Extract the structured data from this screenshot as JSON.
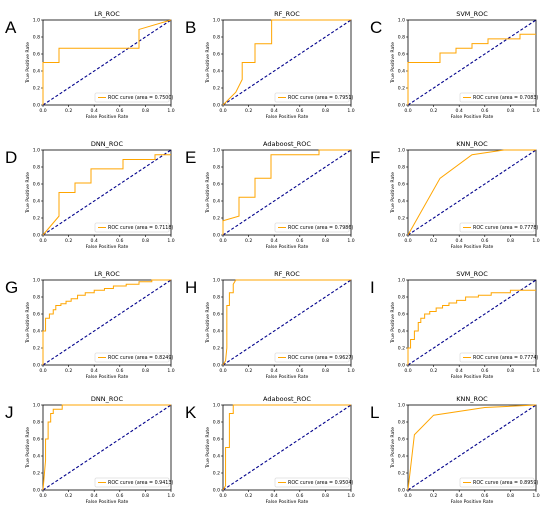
{
  "chart_data": [
    {
      "type": "line",
      "panel_label": "A",
      "title": "LR_ROC",
      "xlabel": "False Positive Rate",
      "ylabel": "True Positive Rate",
      "xlim": [
        0,
        1
      ],
      "ylim": [
        0,
        1
      ],
      "xticks": [
        "0.0",
        "0.2",
        "0.4",
        "0.6",
        "0.8",
        "1.0"
      ],
      "yticks": [
        "0.0",
        "0.2",
        "0.4",
        "0.6",
        "0.8",
        "1.0"
      ],
      "legend": "ROC curve (area = 0.7500)",
      "legend_position": "lower right",
      "color": "#ffa500",
      "x": [
        0,
        0,
        0,
        0.125,
        0.125,
        0.375,
        0.375,
        0.75,
        0.75,
        1.0
      ],
      "y": [
        0,
        0.5,
        0.5,
        0.5,
        0.667,
        0.667,
        0.667,
        0.667,
        0.889,
        1.0
      ]
    },
    {
      "type": "line",
      "panel_label": "B",
      "title": "RF_ROC",
      "xlabel": "False Positive Rate",
      "ylabel": "True Positive Rate",
      "xlim": [
        0,
        1
      ],
      "ylim": [
        0,
        1
      ],
      "xticks": [
        "0.0",
        "0.2",
        "0.4",
        "0.6",
        "0.8",
        "1.0"
      ],
      "yticks": [
        "0.0",
        "0.2",
        "0.4",
        "0.6",
        "0.8",
        "1.0"
      ],
      "legend": "ROC curve (area = 0.7951)",
      "legend_position": "lower right",
      "color": "#ffa500",
      "x": [
        0,
        0.1,
        0.15,
        0.15,
        0.25,
        0.25,
        0.38,
        0.38,
        1.0
      ],
      "y": [
        0,
        0.15,
        0.3,
        0.5,
        0.5,
        0.72,
        0.72,
        1.0,
        1.0
      ]
    },
    {
      "type": "line",
      "panel_label": "C",
      "title": "SVM_ROC",
      "xlabel": "False Positive Rate",
      "ylabel": "True Positive Rate",
      "xlim": [
        0,
        1
      ],
      "ylim": [
        0,
        1
      ],
      "xticks": [
        "0.0",
        "0.2",
        "0.4",
        "0.6",
        "0.8",
        "1.0"
      ],
      "yticks": [
        "0.0",
        "0.2",
        "0.4",
        "0.6",
        "0.8",
        "1.0"
      ],
      "legend": "ROC curve (area = 0.7083)",
      "legend_position": "lower right",
      "color": "#ffa500",
      "x": [
        0,
        0,
        0.25,
        0.25,
        0.375,
        0.375,
        0.5,
        0.5,
        0.625,
        0.625,
        0.875,
        0.875,
        1.0
      ],
      "y": [
        0,
        0.5,
        0.5,
        0.611,
        0.611,
        0.667,
        0.667,
        0.722,
        0.722,
        0.778,
        0.778,
        0.833,
        0.833
      ]
    },
    {
      "type": "line",
      "panel_label": "D",
      "title": "DNN_ROC",
      "xlabel": "False Positive Rate",
      "ylabel": "True Positive Rate",
      "xlim": [
        0,
        1
      ],
      "ylim": [
        0,
        1
      ],
      "xticks": [
        "0.0",
        "0.2",
        "0.4",
        "0.6",
        "0.8",
        "1.0"
      ],
      "yticks": [
        "0.0",
        "0.2",
        "0.4",
        "0.6",
        "0.8",
        "1.0"
      ],
      "legend": "ROC curve (area = 0.7118)",
      "legend_position": "lower right",
      "color": "#ffa500",
      "x": [
        0,
        0.125,
        0.125,
        0.25,
        0.25,
        0.375,
        0.375,
        0.625,
        0.625,
        0.875,
        0.875,
        1.0
      ],
      "y": [
        0,
        0.222,
        0.5,
        0.5,
        0.611,
        0.611,
        0.778,
        0.778,
        0.889,
        0.889,
        0.944,
        0.944
      ]
    },
    {
      "type": "line",
      "panel_label": "E",
      "title": "Adaboost_ROC",
      "xlabel": "False Positive Rate",
      "ylabel": "True Positive Rate",
      "xlim": [
        0,
        1
      ],
      "ylim": [
        0,
        1
      ],
      "xticks": [
        "0.0",
        "0.2",
        "0.4",
        "0.6",
        "0.8",
        "1.0"
      ],
      "yticks": [
        "0.0",
        "0.2",
        "0.4",
        "0.6",
        "0.8",
        "1.0"
      ],
      "legend": "ROC curve (area = 0.7986)",
      "legend_position": "lower right",
      "color": "#ffa500",
      "x": [
        0,
        0,
        0.125,
        0.125,
        0.25,
        0.25,
        0.375,
        0.375,
        0.75,
        0.75,
        1.0
      ],
      "y": [
        0,
        0.167,
        0.222,
        0.444,
        0.444,
        0.667,
        0.667,
        0.944,
        0.944,
        1.0,
        1.0
      ]
    },
    {
      "type": "line",
      "panel_label": "F",
      "title": "KNN_ROC",
      "xlabel": "False Positive Rate",
      "ylabel": "True Positive Rate",
      "xlim": [
        0,
        1
      ],
      "ylim": [
        0,
        1
      ],
      "xticks": [
        "0.0",
        "0.2",
        "0.4",
        "0.6",
        "0.8",
        "1.0"
      ],
      "yticks": [
        "0.0",
        "0.2",
        "0.4",
        "0.6",
        "0.8",
        "1.0"
      ],
      "legend": "ROC curve (area = 0.7778)",
      "legend_position": "lower right",
      "color": "#ffa500",
      "x": [
        0,
        0.25,
        0.5,
        0.75,
        1.0
      ],
      "y": [
        0,
        0.667,
        0.944,
        1.0,
        1.0
      ]
    },
    {
      "type": "line",
      "panel_label": "G",
      "title": "LR_ROC",
      "xlabel": "False Positive Rate",
      "ylabel": "True Positive Rate",
      "xlim": [
        0,
        1
      ],
      "ylim": [
        0,
        1
      ],
      "xticks": [
        "0.0",
        "0.2",
        "0.4",
        "0.6",
        "0.8",
        "1.0"
      ],
      "yticks": [
        "0.0",
        "0.2",
        "0.4",
        "0.6",
        "0.8",
        "1.0"
      ],
      "legend": "ROC curve (area = 0.8249)",
      "legend_position": "lower right",
      "color": "#ffa500",
      "x": [
        0,
        0,
        0.02,
        0.02,
        0.05,
        0.05,
        0.08,
        0.08,
        0.1,
        0.1,
        0.14,
        0.14,
        0.18,
        0.18,
        0.22,
        0.22,
        0.27,
        0.27,
        0.33,
        0.33,
        0.4,
        0.4,
        0.48,
        0.48,
        0.55,
        0.55,
        0.65,
        0.65,
        0.75,
        0.75,
        0.85,
        0.85,
        1.0
      ],
      "y": [
        0,
        0.4,
        0.4,
        0.55,
        0.55,
        0.6,
        0.6,
        0.65,
        0.65,
        0.7,
        0.7,
        0.72,
        0.72,
        0.75,
        0.75,
        0.78,
        0.78,
        0.82,
        0.82,
        0.85,
        0.85,
        0.88,
        0.88,
        0.9,
        0.9,
        0.93,
        0.93,
        0.95,
        0.95,
        0.98,
        0.98,
        1.0,
        1.0
      ]
    },
    {
      "type": "line",
      "panel_label": "H",
      "title": "RF_ROC",
      "xlabel": "False Positive Rate",
      "ylabel": "True Positive Rate",
      "xlim": [
        0,
        1
      ],
      "ylim": [
        0,
        1
      ],
      "xticks": [
        "0.0",
        "0.2",
        "0.4",
        "0.6",
        "0.8",
        "1.0"
      ],
      "yticks": [
        "0.0",
        "0.2",
        "0.4",
        "0.6",
        "0.8",
        "1.0"
      ],
      "legend": "ROC curve (area = 0.9627)",
      "legend_position": "lower right",
      "color": "#ffa500",
      "x": [
        0,
        0.02,
        0.03,
        0.03,
        0.05,
        0.05,
        0.08,
        0.08,
        0.1,
        1.0
      ],
      "y": [
        0,
        0.05,
        0.2,
        0.7,
        0.7,
        0.85,
        0.85,
        0.95,
        1.0,
        1.0
      ]
    },
    {
      "type": "line",
      "panel_label": "I",
      "title": "SVM_ROC",
      "xlabel": "False Positive Rate",
      "ylabel": "True Positive Rate",
      "xlim": [
        0,
        1
      ],
      "ylim": [
        0,
        1
      ],
      "xticks": [
        "0.0",
        "0.2",
        "0.4",
        "0.6",
        "0.8",
        "1.0"
      ],
      "yticks": [
        "0.0",
        "0.2",
        "0.4",
        "0.6",
        "0.8",
        "1.0"
      ],
      "legend": "ROC curve (area = 0.7774)",
      "legend_position": "lower right",
      "color": "#ffa500",
      "x": [
        0,
        0,
        0.02,
        0.02,
        0.05,
        0.05,
        0.08,
        0.08,
        0.1,
        0.1,
        0.13,
        0.13,
        0.17,
        0.17,
        0.22,
        0.22,
        0.27,
        0.27,
        0.32,
        0.32,
        0.38,
        0.38,
        0.45,
        0.45,
        0.55,
        0.55,
        0.65,
        0.65,
        0.8,
        0.8,
        1.0
      ],
      "y": [
        0,
        0.2,
        0.2,
        0.3,
        0.3,
        0.4,
        0.4,
        0.5,
        0.5,
        0.55,
        0.55,
        0.6,
        0.6,
        0.63,
        0.63,
        0.67,
        0.67,
        0.7,
        0.7,
        0.73,
        0.73,
        0.76,
        0.76,
        0.8,
        0.8,
        0.82,
        0.82,
        0.85,
        0.85,
        0.88,
        0.88
      ]
    },
    {
      "type": "line",
      "panel_label": "J",
      "title": "DNN_ROC",
      "xlabel": "False Positive Rate",
      "ylabel": "True Positive Rate",
      "xlim": [
        0,
        1
      ],
      "ylim": [
        0,
        1
      ],
      "xticks": [
        "0.0",
        "0.2",
        "0.4",
        "0.6",
        "0.8",
        "1.0"
      ],
      "yticks": [
        "0.0",
        "0.2",
        "0.4",
        "0.6",
        "0.8",
        "1.0"
      ],
      "legend": "ROC curve (area = 0.9413)",
      "legend_position": "lower right",
      "color": "#ffa500",
      "x": [
        0,
        0.02,
        0.02,
        0.04,
        0.04,
        0.06,
        0.06,
        0.08,
        0.08,
        0.15,
        0.15,
        1.0
      ],
      "y": [
        0,
        0.35,
        0.6,
        0.6,
        0.8,
        0.8,
        0.9,
        0.9,
        0.95,
        0.95,
        1.0,
        1.0
      ]
    },
    {
      "type": "line",
      "panel_label": "K",
      "title": "Adaboost_ROC",
      "xlabel": "False Positive Rate",
      "ylabel": "True Positive Rate",
      "xlim": [
        0,
        1
      ],
      "ylim": [
        0,
        1
      ],
      "xticks": [
        "0.0",
        "0.2",
        "0.4",
        "0.6",
        "0.8",
        "1.0"
      ],
      "yticks": [
        "0.0",
        "0.2",
        "0.4",
        "0.6",
        "0.8",
        "1.0"
      ],
      "legend": "ROC curve (area = 0.9504)",
      "legend_position": "lower right",
      "color": "#ffa500",
      "x": [
        0,
        0.02,
        0.02,
        0.05,
        0.05,
        0.08,
        0.08,
        1.0
      ],
      "y": [
        0,
        0.05,
        0.5,
        0.5,
        0.9,
        0.9,
        1.0,
        1.0
      ]
    },
    {
      "type": "line",
      "panel_label": "L",
      "title": "KNN_ROC",
      "xlabel": "False Positive Rate",
      "ylabel": "True Positive Rate",
      "xlim": [
        0,
        1
      ],
      "ylim": [
        0,
        1
      ],
      "xticks": [
        "0.0",
        "0.2",
        "0.4",
        "0.6",
        "0.8",
        "1.0"
      ],
      "yticks": [
        "0.0",
        "0.2",
        "0.4",
        "0.6",
        "0.8",
        "1.0"
      ],
      "legend": "ROC curve (area = 0.8959)",
      "legend_position": "lower right",
      "color": "#ffa500",
      "x": [
        0,
        0.05,
        0.2,
        0.6,
        1.0
      ],
      "y": [
        0,
        0.65,
        0.88,
        0.97,
        1.0
      ]
    }
  ]
}
